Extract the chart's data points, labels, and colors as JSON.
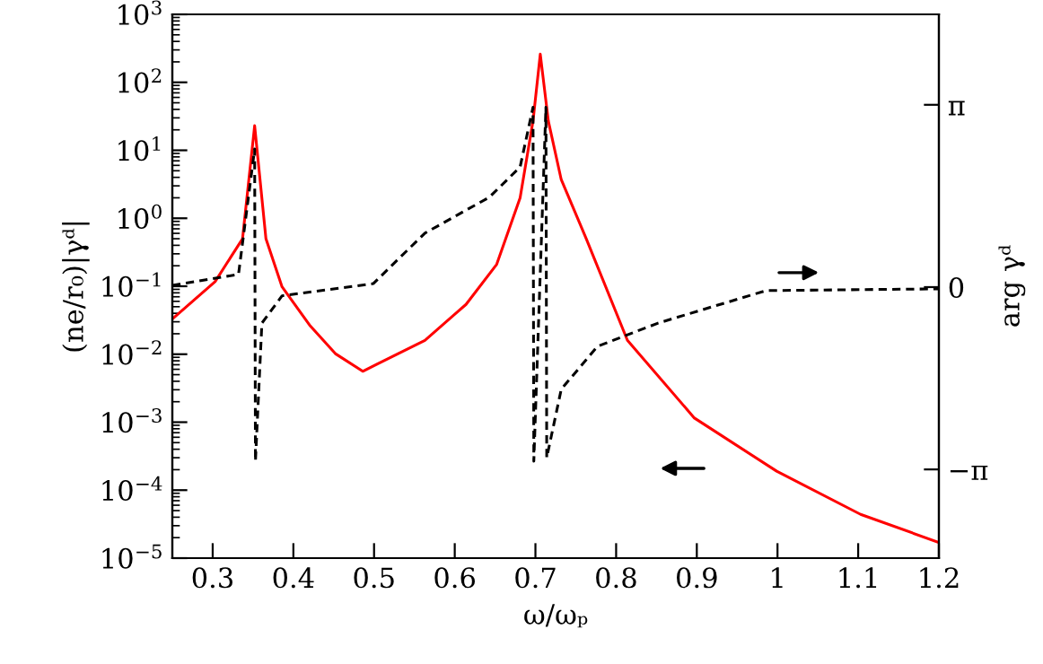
{
  "chart_data": {
    "type": "line",
    "xlabel": "ω/ωₚ",
    "ylabel": "(ne/r₀)|γᵈ|",
    "y2label": "arg γᵈ",
    "log": "y",
    "grid": false,
    "legend": false,
    "marker": "none",
    "xlim": [
      0.25,
      1.2
    ],
    "xticks": [
      0.3,
      0.4,
      0.5,
      0.6,
      0.7,
      0.8,
      0.9,
      1,
      1.1,
      1.2
    ],
    "ylim": [
      1e-05,
      1000
    ],
    "yticks": [
      {
        "value": 1e-05,
        "label": "10$^{−5}$"
      },
      {
        "value": 0.0001,
        "label": "10$^{−4}$"
      },
      {
        "value": 0.001,
        "label": "10$^{−3}$"
      },
      {
        "value": 0.01,
        "label": "10$^{−2}$"
      },
      {
        "value": 0.1,
        "label": "10$^{−1}$"
      },
      {
        "value": 1,
        "label": "10$^{0}$"
      },
      {
        "value": 10,
        "label": "10$^{1}$"
      },
      {
        "value": 100,
        "label": "10$^{2}$"
      },
      {
        "value": 1000,
        "label": "10$^{3}$"
      }
    ],
    "y2lim": [
      -4.67,
      4.7
    ],
    "y2ticks": [
      {
        "value": -3.1416,
        "label": "−π"
      },
      {
        "value": 0,
        "label": "0"
      },
      {
        "value": 3.1416,
        "label": "π"
      }
    ],
    "series": [
      {
        "color": "#ff0000",
        "line_style": "solid",
        "x": [
          0.25,
          0.303,
          0.337,
          0.352,
          0.366,
          0.386,
          0.421,
          0.452,
          0.486,
          0.503,
          0.563,
          0.614,
          0.652,
          0.681,
          0.697,
          0.706,
          0.716,
          0.732,
          0.763,
          0.814,
          0.897,
          0.999,
          1.103,
          1.2
        ],
        "values": [
          0.033,
          0.117,
          0.5,
          23,
          0.5,
          0.098,
          0.026,
          0.0102,
          0.0056,
          0.0071,
          0.016,
          0.054,
          0.21,
          2.0,
          27,
          260,
          27,
          3.7,
          0.5,
          0.016,
          0.00115,
          0.00019,
          4.4e-05,
          1.7e-05
        ]
      },
      {
        "color": "#000000",
        "line_style": "dashed",
        "axis": "y2",
        "x": [
          0.25,
          0.332,
          0.352,
          0.353,
          0.361,
          0.386,
          0.499,
          0.563,
          0.643,
          0.681,
          0.697,
          0.698,
          0.713,
          0.714,
          0.732,
          0.777,
          0.852,
          0.926,
          0.986,
          1.2
        ],
        "values": [
          0.03,
          0.22,
          2.38,
          -3.0,
          -0.62,
          -0.15,
          0.06,
          0.93,
          1.55,
          2.07,
          3.1,
          -3.0,
          3.1,
          -2.94,
          -1.76,
          -1.02,
          -0.62,
          -0.31,
          -0.06,
          -0.03
        ]
      }
    ]
  }
}
